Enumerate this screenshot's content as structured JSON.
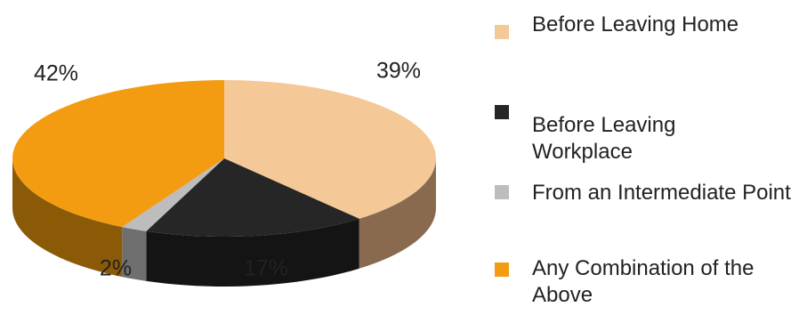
{
  "chart_data": {
    "type": "pie",
    "categories": [
      "Before Leaving Home",
      "Before Leaving Workplace",
      "From an Intermediate Point",
      "Any Combination of the Above"
    ],
    "values": [
      39,
      17,
      2,
      42
    ],
    "labels": [
      "39%",
      "17%",
      "2%",
      "42%"
    ],
    "colors": [
      "#f5c897",
      "#262626",
      "#bdbdbd",
      "#f39c12"
    ],
    "side_colors": [
      "#8a6a4f",
      "#141414",
      "#6f6f6f",
      "#8b5a06"
    ],
    "legend_position": "right",
    "style": "3d"
  }
}
